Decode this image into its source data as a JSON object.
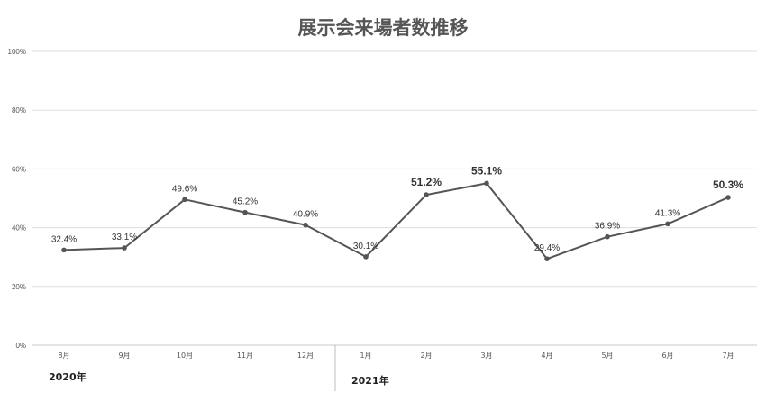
{
  "chart_data": {
    "type": "line",
    "title": "展示会来場者数推移",
    "categories": [
      "8月",
      "9月",
      "10月",
      "11月",
      "12月",
      "1月",
      "2月",
      "3月",
      "4月",
      "5月",
      "6月",
      "7月"
    ],
    "year_groups": [
      {
        "label": "2020年",
        "start": 0,
        "end": 4
      },
      {
        "label": "2021年",
        "start": 5,
        "end": 11
      }
    ],
    "series": [
      {
        "values": [
          32.4,
          33.1,
          49.6,
          45.2,
          40.9,
          30.1,
          51.2,
          55.1,
          29.4,
          36.9,
          41.3,
          50.3
        ],
        "labels": [
          "32.4%",
          "33.1%",
          "49.6%",
          "45.2%",
          "40.9%",
          "30.1%",
          "51.2%",
          "55.1%",
          "29.4%",
          "36.9%",
          "41.3%",
          "50.3%"
        ],
        "highlighted": [
          false,
          false,
          false,
          false,
          false,
          false,
          true,
          true,
          false,
          false,
          false,
          true
        ]
      }
    ],
    "yticks": [
      0,
      20,
      40,
      60,
      80,
      100
    ],
    "ytick_labels": [
      "0%",
      "20%",
      "40%",
      "60%",
      "80%",
      "100%"
    ],
    "ylim": [
      0,
      100
    ],
    "grid": true,
    "colors": {
      "line": "#555555",
      "highlight": "#e60000",
      "grid": "#dddddd",
      "text": "#555555"
    }
  }
}
